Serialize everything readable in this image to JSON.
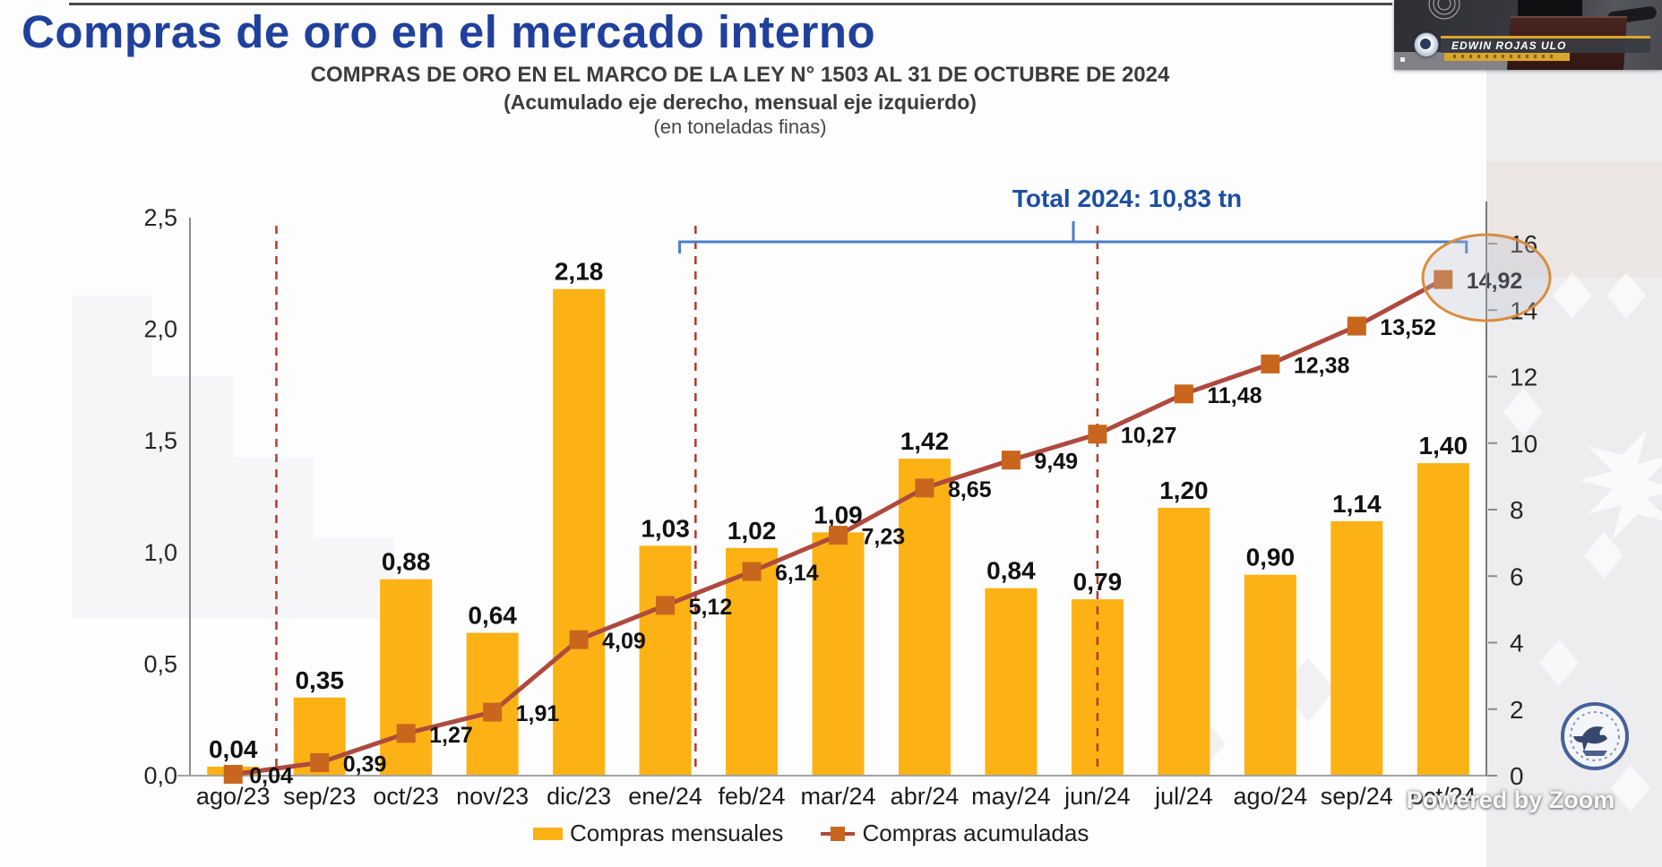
{
  "header": {
    "title": "Compras de oro en el mercado interno"
  },
  "webcam": {
    "name": "EDWIN ROJAS ULO"
  },
  "watermark": {
    "text": "Powered by Zoom"
  },
  "chart": {
    "title": "COMPRAS DE ORO EN EL MARCO DE LA LEY N° 1503 AL 31 DE OCTUBRE DE 2024",
    "subtitle": "(Acumulado eje derecho, mensual eje izquierdo)",
    "unit_note": "(en toneladas finas)",
    "legend": [
      "Compras mensuales",
      "Compras acumuladas"
    ]
  },
  "chart_data": {
    "type": "bar",
    "subtype": "combo-bar-line-dual-axis",
    "title": "COMPRAS DE ORO EN EL MARCO DE LA LEY N° 1503 AL 31 DE OCTUBRE DE 2024",
    "categories": [
      "ago/23",
      "sep/23",
      "oct/23",
      "nov/23",
      "dic/23",
      "ene/24",
      "feb/24",
      "mar/24",
      "abr/24",
      "may/24",
      "jun/24",
      "jul/24",
      "ago/24",
      "sep/24",
      "oct/24"
    ],
    "series": [
      {
        "name": "Compras mensuales",
        "type": "bar",
        "axis": "left",
        "values": [
          0.04,
          0.35,
          0.88,
          0.64,
          2.18,
          1.03,
          1.02,
          1.09,
          1.42,
          0.84,
          0.79,
          1.2,
          0.9,
          1.14,
          1.4
        ],
        "labels": [
          "0,04",
          "0,35",
          "0,88",
          "0,64",
          "2,18",
          "1,03",
          "1,02",
          "1,09",
          "1,42",
          "0,84",
          "0,79",
          "1,20",
          "0,90",
          "1,14",
          "1,40"
        ]
      },
      {
        "name": "Compras acumuladas",
        "type": "line",
        "axis": "right",
        "values": [
          0.04,
          0.39,
          1.27,
          1.91,
          4.09,
          5.12,
          6.14,
          7.23,
          8.65,
          9.49,
          10.27,
          11.48,
          12.38,
          13.52,
          14.92
        ],
        "labels": [
          "0,04",
          "0,39",
          "1,27",
          "1,91",
          "4,09",
          "5,12",
          "6,14",
          "7,23",
          "8,65",
          "9,49",
          "10,27",
          "11,48",
          "12,38",
          "13,52",
          "14,92"
        ]
      }
    ],
    "left_axis": {
      "ticks": [
        "0,0",
        "0,5",
        "1,0",
        "1,5",
        "2,0",
        "2,5"
      ],
      "min": 0,
      "max": 2.5,
      "step": 0.5
    },
    "right_axis": {
      "ticks": [
        "0",
        "2",
        "4",
        "6",
        "8",
        "10",
        "12",
        "14",
        "16"
      ],
      "min": 0,
      "max": 16,
      "step": 2
    },
    "grid": false,
    "legend_position": "bottom",
    "bracket": {
      "label": "Total 2024: 10,83 tn",
      "from": "ene/24",
      "to": "oct/24"
    },
    "reference_lines": [
      "sep/23",
      "ene/24",
      "jun/24"
    ],
    "highlight": {
      "on": "oct/24",
      "series": "Compras acumuladas",
      "value_label": "14,92"
    }
  },
  "colors": {
    "bar": "#fcb214",
    "line": "#af4a3e",
    "marker": "#c8661d",
    "dashed": "#b23a28",
    "bracket": "#4a7ec7",
    "title_blue": "#20409c",
    "total_blue": "#1d4f9e",
    "axis_gray": "#8c8c8c",
    "label_dark": "#111111"
  }
}
